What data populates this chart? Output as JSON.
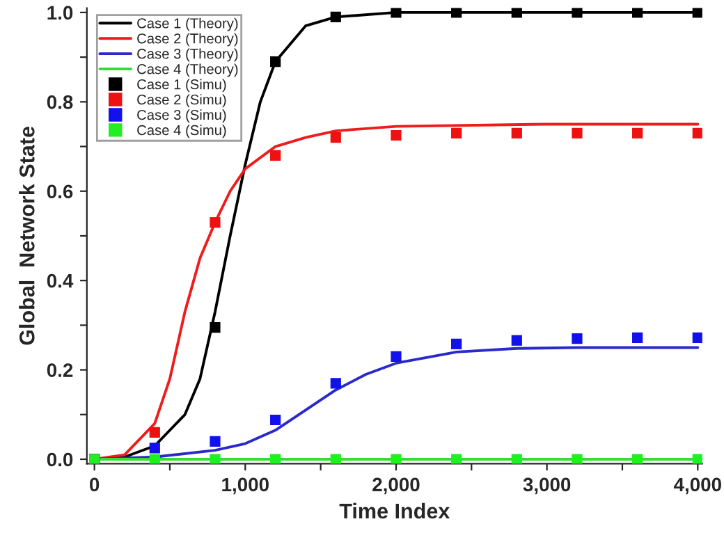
{
  "chart_data": {
    "type": "line",
    "xlabel": "Time Index",
    "ylabel": "Global  Network State",
    "xlim": [
      -50,
      4030
    ],
    "ylim": [
      -0.01,
      1.01
    ],
    "xticks": [
      {
        "value": 0,
        "label": "0"
      },
      {
        "value": 500,
        "label": null
      },
      {
        "value": 1000,
        "label": "1,000"
      },
      {
        "value": 1500,
        "label": null
      },
      {
        "value": 2000,
        "label": "2,000"
      },
      {
        "value": 2500,
        "label": null
      },
      {
        "value": 3000,
        "label": "3,000"
      },
      {
        "value": 3500,
        "label": null
      },
      {
        "value": 4000,
        "label": "4,000"
      }
    ],
    "yticks": [
      {
        "value": 0,
        "label": "0.0"
      },
      {
        "value": 0.1,
        "label": null
      },
      {
        "value": 0.2,
        "label": "0.2"
      },
      {
        "value": 0.3,
        "label": null
      },
      {
        "value": 0.4,
        "label": "0.4"
      },
      {
        "value": 0.5,
        "label": null
      },
      {
        "value": 0.6,
        "label": "0.6"
      },
      {
        "value": 0.7,
        "label": null
      },
      {
        "value": 0.8,
        "label": "0.8"
      },
      {
        "value": 0.9,
        "label": null
      },
      {
        "value": 1.0,
        "label": "1.0"
      }
    ],
    "grid": false,
    "legend": "top left",
    "series": [
      {
        "name": "Case 1 (Theory)",
        "marker": "none",
        "line_style": "solid",
        "color": "#000000",
        "x": [
          0,
          200,
          400,
          600,
          700,
          800,
          900,
          1000,
          1100,
          1200,
          1400,
          1600,
          2000,
          4000
        ],
        "values": [
          0,
          0.005,
          0.03,
          0.1,
          0.18,
          0.33,
          0.5,
          0.66,
          0.8,
          0.89,
          0.97,
          0.99,
          1.0,
          1.0
        ]
      },
      {
        "name": "Case 2 (Theory)",
        "marker": "none",
        "line_style": "solid",
        "color": "#ee1c1c",
        "x": [
          0,
          200,
          400,
          500,
          600,
          700,
          800,
          900,
          1000,
          1200,
          1400,
          1600,
          2000,
          3000,
          4000
        ],
        "values": [
          0,
          0.01,
          0.08,
          0.18,
          0.33,
          0.45,
          0.53,
          0.6,
          0.65,
          0.7,
          0.72,
          0.735,
          0.745,
          0.75,
          0.75
        ]
      },
      {
        "name": "Case 3 (Theory)",
        "marker": "none",
        "line_style": "solid",
        "color": "#2a2acc",
        "x": [
          0,
          400,
          800,
          1000,
          1200,
          1400,
          1600,
          1800,
          2000,
          2400,
          2800,
          3200,
          4000
        ],
        "values": [
          0,
          0.005,
          0.02,
          0.035,
          0.065,
          0.11,
          0.155,
          0.19,
          0.215,
          0.24,
          0.248,
          0.25,
          0.25
        ]
      },
      {
        "name": "Case 4 (Theory)",
        "marker": "none",
        "line_style": "solid",
        "color": "#33dd33",
        "x": [
          0,
          4000
        ],
        "values": [
          0,
          0
        ]
      },
      {
        "name": "Case 1 (Simu)",
        "type": "scatter",
        "marker": "square",
        "color": "#000000",
        "x": [
          0,
          400,
          800,
          1200,
          1600,
          2000,
          2400,
          2800,
          3200,
          3600,
          4000
        ],
        "values": [
          0,
          null,
          0.295,
          0.89,
          0.99,
          1.0,
          1.0,
          1.0,
          1.0,
          1.0,
          1.0
        ]
      },
      {
        "name": "Case 2 (Simu)",
        "type": "scatter",
        "marker": "square",
        "color": "#ee1111",
        "x": [
          0,
          400,
          800,
          1200,
          1600,
          2000,
          2400,
          2800,
          3200,
          3600,
          4000
        ],
        "values": [
          0,
          0.06,
          0.53,
          0.68,
          0.72,
          0.725,
          0.73,
          0.73,
          0.73,
          0.73,
          0.73
        ]
      },
      {
        "name": "Case 3 (Simu)",
        "type": "scatter",
        "marker": "square",
        "color": "#1111ee",
        "x": [
          0,
          400,
          800,
          1200,
          1600,
          2000,
          2400,
          2800,
          3200,
          3600,
          4000
        ],
        "values": [
          0,
          0.025,
          0.04,
          0.088,
          0.17,
          0.23,
          0.258,
          0.266,
          0.27,
          0.272,
          0.272
        ]
      },
      {
        "name": "Case 4 (Simu)",
        "type": "scatter",
        "marker": "square",
        "color": "#22ee22",
        "x": [
          0,
          400,
          800,
          1200,
          1600,
          2000,
          2400,
          2800,
          3200,
          3600,
          4000
        ],
        "values": [
          0,
          0,
          0,
          0,
          0,
          0,
          0,
          0,
          0,
          0,
          0
        ]
      }
    ]
  }
}
